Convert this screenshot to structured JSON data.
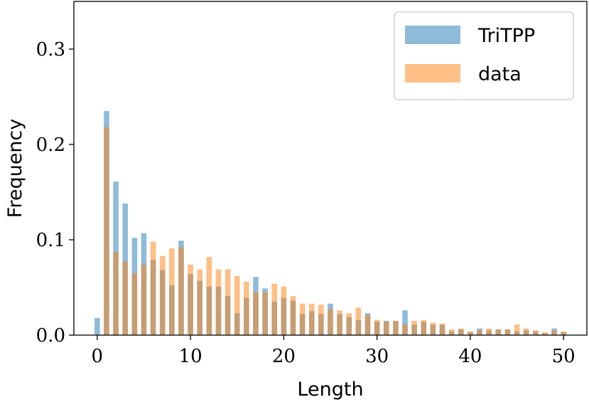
{
  "chart_data": {
    "type": "bar",
    "xlabel": "Length",
    "ylabel": "Frequency",
    "xlim": [
      -2.5,
      52.5
    ],
    "ylim": [
      0,
      0.35
    ],
    "xticks": [
      0,
      10,
      20,
      30,
      40,
      50
    ],
    "yticks": [
      0.0,
      0.1,
      0.2,
      0.3
    ],
    "xtick_labels": [
      "0",
      "10",
      "20",
      "30",
      "40",
      "50"
    ],
    "ytick_labels": [
      "0.0",
      "0.1",
      "0.2",
      "0.3"
    ],
    "grid": false,
    "legend_position": "top-right",
    "x": [
      0,
      1,
      2,
      3,
      4,
      5,
      6,
      7,
      8,
      9,
      10,
      11,
      12,
      13,
      14,
      15,
      16,
      17,
      18,
      19,
      20,
      21,
      22,
      23,
      24,
      25,
      26,
      27,
      28,
      29,
      30,
      31,
      32,
      33,
      34,
      35,
      36,
      37,
      38,
      39,
      40,
      41,
      42,
      43,
      44,
      45,
      46,
      47,
      48,
      49,
      50
    ],
    "series": [
      {
        "name": "TriTPP",
        "color": "#1f77b4",
        "values": [
          0.018,
          0.235,
          0.161,
          0.138,
          0.102,
          0.107,
          0.079,
          0.068,
          0.052,
          0.099,
          0.064,
          0.057,
          0.051,
          0.051,
          0.041,
          0.023,
          0.039,
          0.061,
          0.049,
          0.035,
          0.039,
          0.036,
          0.022,
          0.025,
          0.022,
          0.033,
          0.022,
          0.019,
          0.016,
          0.023,
          0.014,
          0.015,
          0.015,
          0.026,
          0.011,
          0.014,
          0.011,
          0.011,
          0.004,
          0.006,
          0.003,
          0.007,
          0.005,
          0.006,
          0.006,
          0.004,
          0.005,
          0.004,
          0.002,
          0.007,
          0.003
        ]
      },
      {
        "name": "data",
        "color": "#ff7f0e",
        "values": [
          0.0,
          0.218,
          0.087,
          0.077,
          0.065,
          0.074,
          0.098,
          0.083,
          0.091,
          0.092,
          0.074,
          0.069,
          0.082,
          0.069,
          0.069,
          0.062,
          0.056,
          0.045,
          0.045,
          0.054,
          0.051,
          0.041,
          0.033,
          0.033,
          0.032,
          0.027,
          0.026,
          0.023,
          0.029,
          0.021,
          0.016,
          0.014,
          0.015,
          0.011,
          0.015,
          0.016,
          0.013,
          0.012,
          0.006,
          0.007,
          0.004,
          0.005,
          0.007,
          0.006,
          0.006,
          0.011,
          0.007,
          0.005,
          0.003,
          0.005,
          0.004
        ]
      }
    ]
  }
}
